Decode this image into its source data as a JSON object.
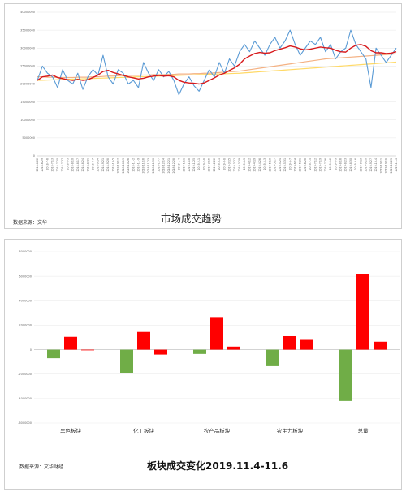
{
  "chart_data": [
    {
      "type": "line",
      "title": "市场成交趋势",
      "source": "数据来源：文华",
      "ylim": [
        0,
        40000000
      ],
      "yticks": [
        "0",
        "5000000",
        "10000000",
        "15000000",
        "20000000",
        "25000000",
        "30000000",
        "35000000",
        "40000000"
      ],
      "xtick_labels": [
        "2018-6-22",
        "2018-6-29",
        "2018-7-6",
        "2018-7-13",
        "2018-7-20",
        "2018-7-27",
        "2018-8-3",
        "2018-8-10",
        "2018-8-17",
        "2018-8-24",
        "2018-8-31",
        "2018-9-7",
        "2018-9-14",
        "2018-9-21",
        "2018-9-28",
        "2018-10-5",
        "2018-10-12",
        "2018-10-19",
        "2018-10-26",
        "2018-11-2",
        "2018-11-9",
        "2018-11-16",
        "2018-11-23",
        "2018-11-30",
        "2018-12-7",
        "2018-12-14",
        "2018-12-21",
        "2018-12-28",
        "2019-1-4",
        "2019-1-11",
        "2019-1-18",
        "2019-1-25",
        "2019-2-1",
        "2019-2-8",
        "2019-2-15",
        "2019-2-22",
        "2019-3-1",
        "2019-3-8",
        "2019-3-15",
        "2019-3-22",
        "2019-3-29",
        "2019-4-5",
        "2019-4-12",
        "2019-4-19",
        "2019-4-26",
        "2019-5-3",
        "2019-5-10",
        "2019-5-17",
        "2019-5-24",
        "2019-5-31",
        "2019-6-7",
        "2019-6-14",
        "2019-6-21",
        "2019-6-28",
        "2019-7-5",
        "2019-7-12",
        "2019-7-19",
        "2019-7-26",
        "2019-8-2",
        "2019-8-9",
        "2019-8-16",
        "2019-8-23",
        "2019-8-30",
        "2019-9-6",
        "2019-9-13",
        "2019-9-20",
        "2019-9-27",
        "2019-10-4",
        "2019-10-11",
        "2019-10-18",
        "2019-10-25",
        "2019-11-1"
      ],
      "series": [
        {
          "color": "#5b9bd5",
          "values": [
            21000000,
            25000000,
            23000000,
            22000000,
            19000000,
            24000000,
            21000000,
            20000000,
            23000000,
            18500000,
            22000000,
            24000000,
            22500000,
            28000000,
            22000000,
            20000000,
            24000000,
            23000000,
            20000000,
            21000000,
            19000000,
            26000000,
            23000000,
            21000000,
            24000000,
            22000000,
            23500000,
            21000000,
            17000000,
            20000000,
            22000000,
            19500000,
            18000000,
            21000000,
            24000000,
            22000000,
            26000000,
            23000000,
            27000000,
            25000000,
            29000000,
            31000000,
            29000000,
            32000000,
            30000000,
            28000000,
            31000000,
            33000000,
            30000000,
            32000000,
            35000000,
            31000000,
            28000000,
            30000000,
            32000000,
            31000000,
            33000000,
            29000000,
            31000000,
            27000000,
            29000000,
            30000000,
            35000000,
            31000000,
            29000000,
            27000000,
            19000000,
            30000000,
            28000000,
            26000000,
            28000000,
            30000000
          ]
        },
        {
          "color": "#d7191c",
          "values": [
            21000000,
            22000000,
            22200000,
            22500000,
            21800000,
            21500000,
            21200000,
            21000000,
            21300000,
            21000000,
            21200000,
            21800000,
            22500000,
            23500000,
            23800000,
            23200000,
            22800000,
            22400000,
            22000000,
            21700000,
            21400000,
            21600000,
            22000000,
            22200000,
            22400000,
            22200000,
            22300000,
            22000000,
            21000000,
            20500000,
            20300000,
            20200000,
            20000000,
            20300000,
            21000000,
            21700000,
            22500000,
            23000000,
            23800000,
            24500000,
            25500000,
            27000000,
            27800000,
            28500000,
            28800000,
            28600000,
            28700000,
            29300000,
            29700000,
            30100000,
            30600000,
            30300000,
            29800000,
            29500000,
            29700000,
            30000000,
            30300000,
            30100000,
            30000000,
            29400000,
            29000000,
            28900000,
            30000000,
            30800000,
            31000000,
            30500000,
            29300000,
            28700000,
            28700000,
            28500000,
            28600000,
            29000000
          ]
        },
        {
          "color": "#f4b183",
          "values": [
            22000000,
            22000000,
            21900000,
            21900000,
            21800000,
            21800000,
            21800000,
            21800000,
            21900000,
            21900000,
            21900000,
            22000000,
            22000000,
            22100000,
            22200000,
            22200000,
            22300000,
            22300000,
            22400000,
            22400000,
            22400000,
            22500000,
            22500000,
            22600000,
            22600000,
            22600000,
            22700000,
            22700000,
            22800000,
            22800000,
            22800000,
            22900000,
            22900000,
            23000000,
            23000000,
            23100000,
            23200000,
            23300000,
            23400000,
            23500000,
            23600000,
            23800000,
            24000000,
            24200000,
            24400000,
            24600000,
            24800000,
            25000000,
            25200000,
            25400000,
            25600000,
            25800000,
            26000000,
            26200000,
            26400000,
            26600000,
            26800000,
            27000000,
            27100000,
            27200000,
            27300000,
            27400000,
            27500000,
            27600000,
            27700000,
            27800000,
            27900000,
            28000000,
            28100000,
            28200000,
            28300000,
            28400000
          ]
        },
        {
          "color": "#ffd966",
          "values": [
            21000000,
            21050000,
            21100000,
            21150000,
            21200000,
            21250000,
            21300000,
            21350000,
            21400000,
            21450000,
            21500000,
            21550000,
            21600000,
            21650000,
            21700000,
            21750000,
            21800000,
            21850000,
            21900000,
            21950000,
            22000000,
            22050000,
            22100000,
            22150000,
            22200000,
            22250000,
            22300000,
            22350000,
            22400000,
            22450000,
            22500000,
            22550000,
            22600000,
            22650000,
            22700000,
            22750000,
            22800000,
            22850000,
            22900000,
            22950000,
            23000000,
            23100000,
            23200000,
            23300000,
            23400000,
            23500000,
            23600000,
            23700000,
            23800000,
            23900000,
            24000000,
            24100000,
            24200000,
            24300000,
            24400000,
            24500000,
            24600000,
            24700000,
            24800000,
            24900000,
            25000000,
            25100000,
            25200000,
            25300000,
            25400000,
            25500000,
            25600000,
            25700000,
            25800000,
            25900000,
            26000000,
            26100000
          ]
        }
      ]
    },
    {
      "type": "bar",
      "title": "板块成交变化2019.11.4-11.6",
      "source": "数据来源：文华财经",
      "ylim": [
        -6000000,
        8000000
      ],
      "yticks": [
        "8000000",
        "6000000",
        "4000000",
        "2000000",
        "0",
        "-2000000",
        "-4000000",
        "-6000000"
      ],
      "categories": [
        "黑色板块",
        "化工板块",
        "农产品板块",
        "农主力板块",
        "总量"
      ],
      "series": [
        {
          "color": "#70ad47",
          "values": [
            -700000,
            -1900000,
            -350000,
            -1350000,
            -4200000
          ]
        },
        {
          "color": "#ff0000",
          "values": [
            1050000,
            1450000,
            2600000,
            1100000,
            6200000
          ]
        },
        {
          "color": "#ff0000",
          "values": [
            -50000,
            -400000,
            250000,
            800000,
            650000
          ]
        }
      ]
    }
  ]
}
